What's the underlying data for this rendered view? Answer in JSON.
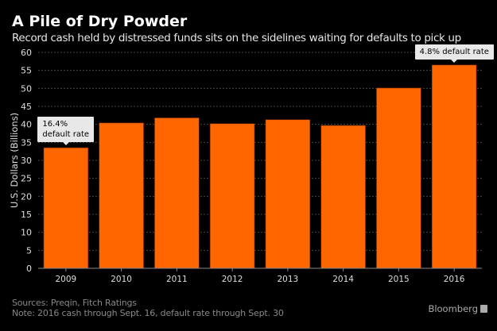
{
  "header": {
    "title": "A Pile of Dry Powder",
    "subtitle": "Record cash held by distressed funds sits on the sidelines waiting for defaults to pick up"
  },
  "chart_data": {
    "type": "bar",
    "title": "A Pile of Dry Powder",
    "subtitle": "Record cash held by distressed funds sits on the sidelines waiting for defaults to pick up",
    "xlabel": "",
    "ylabel": "U.S. Dollars (Billions)",
    "categories": [
      "2009",
      "2010",
      "2011",
      "2012",
      "2013",
      "2014",
      "2015",
      "2016"
    ],
    "values": [
      33.5,
      40.4,
      41.8,
      40.2,
      41.3,
      39.7,
      50.1,
      56.5
    ],
    "ylim": [
      0,
      60
    ],
    "yticks": [
      0,
      5,
      10,
      15,
      20,
      25,
      30,
      35,
      40,
      45,
      50,
      55,
      60
    ],
    "grid": true,
    "bar_color": "#ff6600",
    "annotations": [
      {
        "category": "2009",
        "lines": [
          "16.4%",
          "default rate"
        ]
      },
      {
        "category": "2016",
        "lines": [
          "4.8% default rate"
        ]
      }
    ]
  },
  "footer": {
    "sources": "Sources: Preqin, Fitch Ratings",
    "note": "Note: 2016 cash through Sept. 16, default rate through Sept. 30",
    "brand": "Bloomberg"
  }
}
